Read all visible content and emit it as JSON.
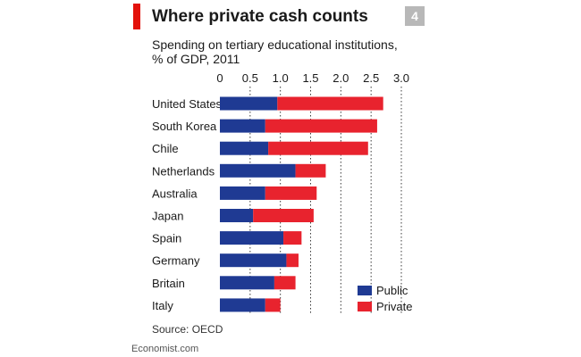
{
  "header": {
    "title": "Where private cash counts",
    "badge": "4",
    "subtitle": "Spending on tertiary educational institutions, % of GDP, 2011"
  },
  "source": "Source: OECD",
  "footer": "Economist.com",
  "colors": {
    "accent": "#e3120b",
    "public": "#1f3a93",
    "private": "#e8232e",
    "badge": "#b8b8b8"
  },
  "chart_data": {
    "type": "bar",
    "orientation": "horizontal",
    "stacked": true,
    "title": "Where private cash counts",
    "subtitle": "Spending on tertiary educational institutions, % of GDP, 2011",
    "xlim": [
      0,
      3.0
    ],
    "xticks": [
      "0",
      "0.5",
      "1.0",
      "1.5",
      "2.0",
      "2.5",
      "3.0"
    ],
    "xtick_values": [
      0,
      0.5,
      1.0,
      1.5,
      2.0,
      2.5,
      3.0
    ],
    "grid": true,
    "legend_position": "bottom-right",
    "categories": [
      "United States",
      "South Korea",
      "Chile",
      "Netherlands",
      "Australia",
      "Japan",
      "Spain",
      "Germany",
      "Britain",
      "Italy"
    ],
    "series": [
      {
        "name": "Public",
        "values": [
          0.95,
          0.75,
          0.8,
          1.25,
          0.75,
          0.55,
          1.05,
          1.1,
          0.9,
          0.75
        ]
      },
      {
        "name": "Private",
        "values": [
          1.75,
          1.85,
          1.65,
          0.5,
          0.85,
          1.0,
          0.3,
          0.2,
          0.35,
          0.25
        ]
      }
    ]
  }
}
